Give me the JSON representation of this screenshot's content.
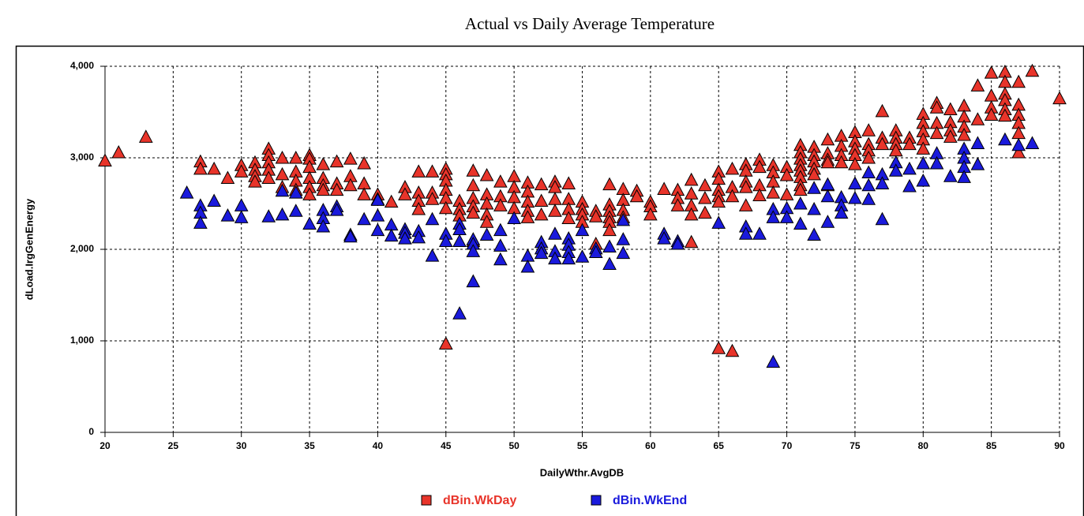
{
  "chart_data": {
    "type": "scatter",
    "title": "Actual vs Daily Average Temperature",
    "x_label": "DailyWthr.AvgDB",
    "y_label": "dLoad.IrgGenEnergy",
    "xlim": [
      20,
      90
    ],
    "xticks": [
      20,
      25,
      30,
      35,
      40,
      45,
      50,
      55,
      60,
      65,
      70,
      75,
      80,
      85,
      90
    ],
    "ylim": [
      0,
      4000
    ],
    "yticks": [
      0,
      {
        "value": 1000,
        "label": "1,000"
      },
      {
        "value": 2000,
        "label": "2,000"
      },
      {
        "value": 3000,
        "label": "3,000"
      },
      {
        "value": 4000,
        "label": "4,000"
      }
    ],
    "grid": true,
    "legend": "bottom",
    "marker": "triangle",
    "series": [
      {
        "name": "dBin.WkDay",
        "color": "#e8342a",
        "x": [
          20,
          21,
          23,
          27,
          27,
          28,
          29,
          30,
          30,
          31,
          31,
          31,
          31,
          32,
          32,
          32,
          32,
          32,
          33,
          33,
          33,
          34,
          34,
          34,
          34,
          35,
          35,
          35,
          35,
          35,
          35,
          36,
          36,
          36,
          36,
          37,
          37,
          37,
          38,
          38,
          38,
          39,
          39,
          39,
          40,
          40,
          41,
          42,
          42,
          43,
          43,
          43,
          43,
          44,
          44,
          44,
          45,
          45,
          45,
          45,
          45,
          45,
          45,
          46,
          46,
          46,
          47,
          47,
          47,
          47,
          47,
          47,
          48,
          48,
          48,
          48,
          48,
          49,
          49,
          49,
          50,
          50,
          50,
          50,
          51,
          51,
          51,
          51,
          51,
          52,
          52,
          52,
          53,
          53,
          53,
          53,
          54,
          54,
          54,
          54,
          55,
          55,
          55,
          55,
          56,
          56,
          56,
          57,
          57,
          57,
          57,
          57,
          57,
          58,
          58,
          58,
          58,
          59,
          59,
          60,
          60,
          60,
          61,
          62,
          62,
          62,
          63,
          63,
          63,
          63,
          63,
          64,
          64,
          64,
          65,
          65,
          65,
          65,
          65,
          65,
          66,
          66,
          66,
          66,
          67,
          67,
          67,
          67,
          67,
          68,
          68,
          68,
          68,
          69,
          69,
          69,
          69,
          70,
          70,
          70,
          71,
          71,
          71,
          71,
          71,
          71,
          71,
          71,
          72,
          72,
          72,
          72,
          72,
          73,
          73,
          73,
          73,
          73,
          74,
          74,
          74,
          74,
          75,
          75,
          75,
          75,
          75,
          76,
          76,
          76,
          76,
          77,
          77,
          77,
          78,
          78,
          78,
          78,
          79,
          79,
          80,
          80,
          80,
          80,
          80,
          81,
          81,
          81,
          81,
          82,
          82,
          82,
          82,
          83,
          83,
          83,
          83,
          84,
          84,
          85,
          85,
          85,
          85,
          86,
          86,
          86,
          86,
          86,
          86,
          87,
          87,
          87,
          87,
          87,
          87,
          88,
          90
        ],
        "values": [
          2970,
          3060,
          3230,
          2960,
          2880,
          2880,
          2780,
          2920,
          2850,
          2950,
          2870,
          2800,
          2740,
          3100,
          3030,
          2950,
          2870,
          2780,
          3000,
          2820,
          2680,
          3000,
          2850,
          2750,
          2650,
          3030,
          2990,
          2900,
          2780,
          2680,
          2600,
          2930,
          2780,
          2700,
          2650,
          2960,
          2720,
          2650,
          2990,
          2800,
          2700,
          2940,
          2720,
          2600,
          2600,
          2550,
          2520,
          2680,
          2600,
          2850,
          2620,
          2530,
          2440,
          2850,
          2620,
          2550,
          2880,
          2820,
          2750,
          2650,
          2560,
          2450,
          970,
          2530,
          2440,
          2370,
          2860,
          2700,
          2560,
          2470,
          2400,
          2090,
          2810,
          2600,
          2500,
          2380,
          2300,
          2740,
          2580,
          2480,
          2800,
          2680,
          2570,
          2450,
          2730,
          2630,
          2520,
          2420,
          2350,
          2710,
          2530,
          2380,
          2740,
          2680,
          2550,
          2420,
          2720,
          2550,
          2440,
          2340,
          2520,
          2440,
          2380,
          2300,
          2420,
          2360,
          2060,
          2710,
          2490,
          2420,
          2350,
          2300,
          2210,
          2660,
          2540,
          2430,
          2350,
          2640,
          2580,
          2520,
          2470,
          2380,
          2660,
          2650,
          2560,
          2480,
          2760,
          2610,
          2480,
          2380,
          2080,
          2700,
          2560,
          2400,
          2850,
          2770,
          2650,
          2580,
          2520,
          920,
          2880,
          2680,
          2580,
          890,
          2930,
          2860,
          2740,
          2680,
          2480,
          2980,
          2900,
          2700,
          2590,
          2920,
          2840,
          2740,
          2620,
          2900,
          2810,
          2600,
          3140,
          3060,
          2990,
          2920,
          2860,
          2790,
          2700,
          2650,
          3120,
          3030,
          2960,
          2880,
          2820,
          3200,
          3050,
          2980,
          2950,
          2700,
          3240,
          3130,
          3030,
          2950,
          3280,
          3180,
          3100,
          3030,
          2930,
          3300,
          3150,
          3080,
          3000,
          3510,
          3220,
          3150,
          3300,
          3220,
          3150,
          3080,
          3220,
          3150,
          3480,
          3380,
          3290,
          3200,
          3100,
          3600,
          3550,
          3380,
          3270,
          3530,
          3390,
          3300,
          3230,
          3570,
          3450,
          3340,
          3250,
          3790,
          3420,
          3930,
          3680,
          3550,
          3470,
          3940,
          3830,
          3700,
          3630,
          3530,
          3460,
          3830,
          3580,
          3470,
          3380,
          3270,
          3060,
          3950,
          3650
        ]
      },
      {
        "name": "dBin.WkEnd",
        "color": "#1a1adc",
        "x": [
          26,
          27,
          27,
          27,
          28,
          29,
          30,
          30,
          32,
          33,
          33,
          34,
          34,
          35,
          36,
          36,
          36,
          37,
          37,
          38,
          38,
          39,
          40,
          40,
          40,
          41,
          41,
          42,
          42,
          42,
          43,
          43,
          44,
          44,
          45,
          45,
          46,
          46,
          46,
          46,
          47,
          47,
          47,
          47,
          48,
          49,
          49,
          49,
          50,
          51,
          51,
          52,
          52,
          52,
          53,
          53,
          53,
          54,
          54,
          54,
          54,
          55,
          55,
          56,
          56,
          57,
          57,
          58,
          58,
          58,
          61,
          61,
          62,
          62,
          65,
          67,
          67,
          68,
          69,
          69,
          69,
          70,
          70,
          71,
          71,
          72,
          72,
          72,
          73,
          73,
          73,
          74,
          74,
          74,
          75,
          75,
          76,
          76,
          76,
          77,
          77,
          77,
          78,
          78,
          79,
          79,
          80,
          80,
          81,
          81,
          82,
          83,
          83,
          83,
          83,
          84,
          84,
          86,
          87,
          88
        ],
        "values": [
          2620,
          2480,
          2400,
          2290,
          2530,
          2370,
          2480,
          2350,
          2360,
          2380,
          2640,
          2420,
          2620,
          2280,
          2430,
          2340,
          2250,
          2470,
          2430,
          2160,
          2140,
          2330,
          2540,
          2370,
          2210,
          2270,
          2150,
          2220,
          2180,
          2120,
          2200,
          2130,
          2330,
          1930,
          2170,
          2090,
          2280,
          2220,
          2090,
          1300,
          2110,
          2060,
          1980,
          1650,
          2160,
          2210,
          2040,
          1890,
          2340,
          1930,
          1810,
          2080,
          2010,
          1960,
          2170,
          1980,
          1900,
          2120,
          2050,
          1970,
          1900,
          2210,
          1920,
          2010,
          1970,
          2030,
          1840,
          2320,
          2110,
          1960,
          2170,
          2120,
          2090,
          2060,
          2290,
          2250,
          2170,
          2170,
          2440,
          2350,
          770,
          2450,
          2350,
          2500,
          2280,
          2670,
          2440,
          2160,
          2710,
          2580,
          2300,
          2570,
          2480,
          2400,
          2720,
          2560,
          2840,
          2700,
          2550,
          2820,
          2720,
          2330,
          2950,
          2860,
          2880,
          2690,
          2940,
          2750,
          3050,
          2940,
          2800,
          3100,
          3000,
          2900,
          2790,
          3160,
          2930,
          3200,
          3140,
          3160
        ]
      }
    ]
  }
}
